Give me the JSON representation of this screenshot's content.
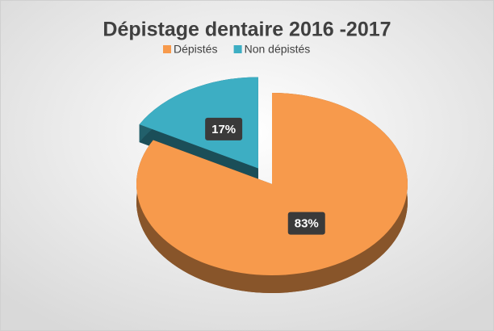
{
  "chart_data": {
    "type": "pie",
    "title": "Dépistage dentaire 2016 -2017",
    "categories": [
      "Dépistés",
      "Non dépistés"
    ],
    "values": [
      83,
      17
    ],
    "value_labels": [
      "83%",
      "17%"
    ],
    "colors": [
      "#F79A4C",
      "#3DAEC3"
    ],
    "legend": "top"
  }
}
